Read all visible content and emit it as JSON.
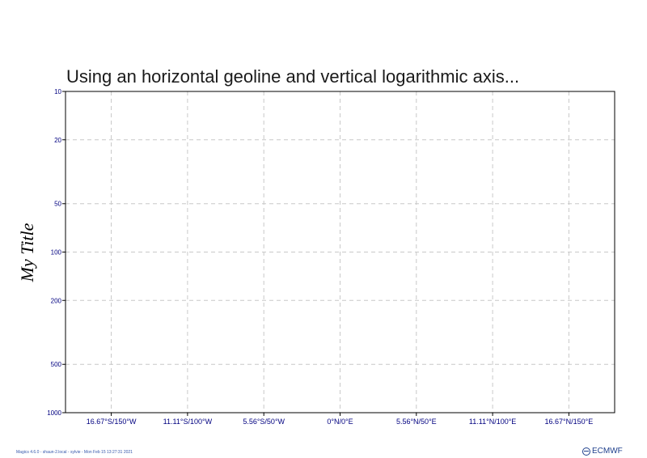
{
  "chart_data": {
    "type": "line",
    "title": "Using an horizontal geoline and vertical logarithmic axis...",
    "ylabel": "My Title",
    "x_axis": {
      "type": "geoline",
      "ticks": [
        {
          "value": -150,
          "label": "16.67°S/150°W"
        },
        {
          "value": -100,
          "label": "11.11°S/100°W"
        },
        {
          "value": -50,
          "label": "5.56°S/50°W"
        },
        {
          "value": 0,
          "label": "0°N/0°E"
        },
        {
          "value": 50,
          "label": "5.56°N/50°E"
        },
        {
          "value": 100,
          "label": "11.11°N/100°E"
        },
        {
          "value": 150,
          "label": "16.67°N/150°E"
        }
      ],
      "range": [
        -180,
        180
      ]
    },
    "y_axis": {
      "type": "logarithmic",
      "reversed": true,
      "range": [
        10,
        1000
      ],
      "ticks": [
        10,
        20,
        50,
        100,
        200,
        500,
        1000
      ]
    },
    "grid": true,
    "series": []
  },
  "footer": {
    "text": "Magics 4.6.0 - shaun-2.local - sylvie - Mon Feb 15 13:27:31 2021",
    "logo_text": "ECMWF"
  },
  "colors": {
    "axis": "#000000",
    "tick_label": "#000080",
    "grid": "#c8c8c8",
    "logo": "#1e3f8c"
  }
}
